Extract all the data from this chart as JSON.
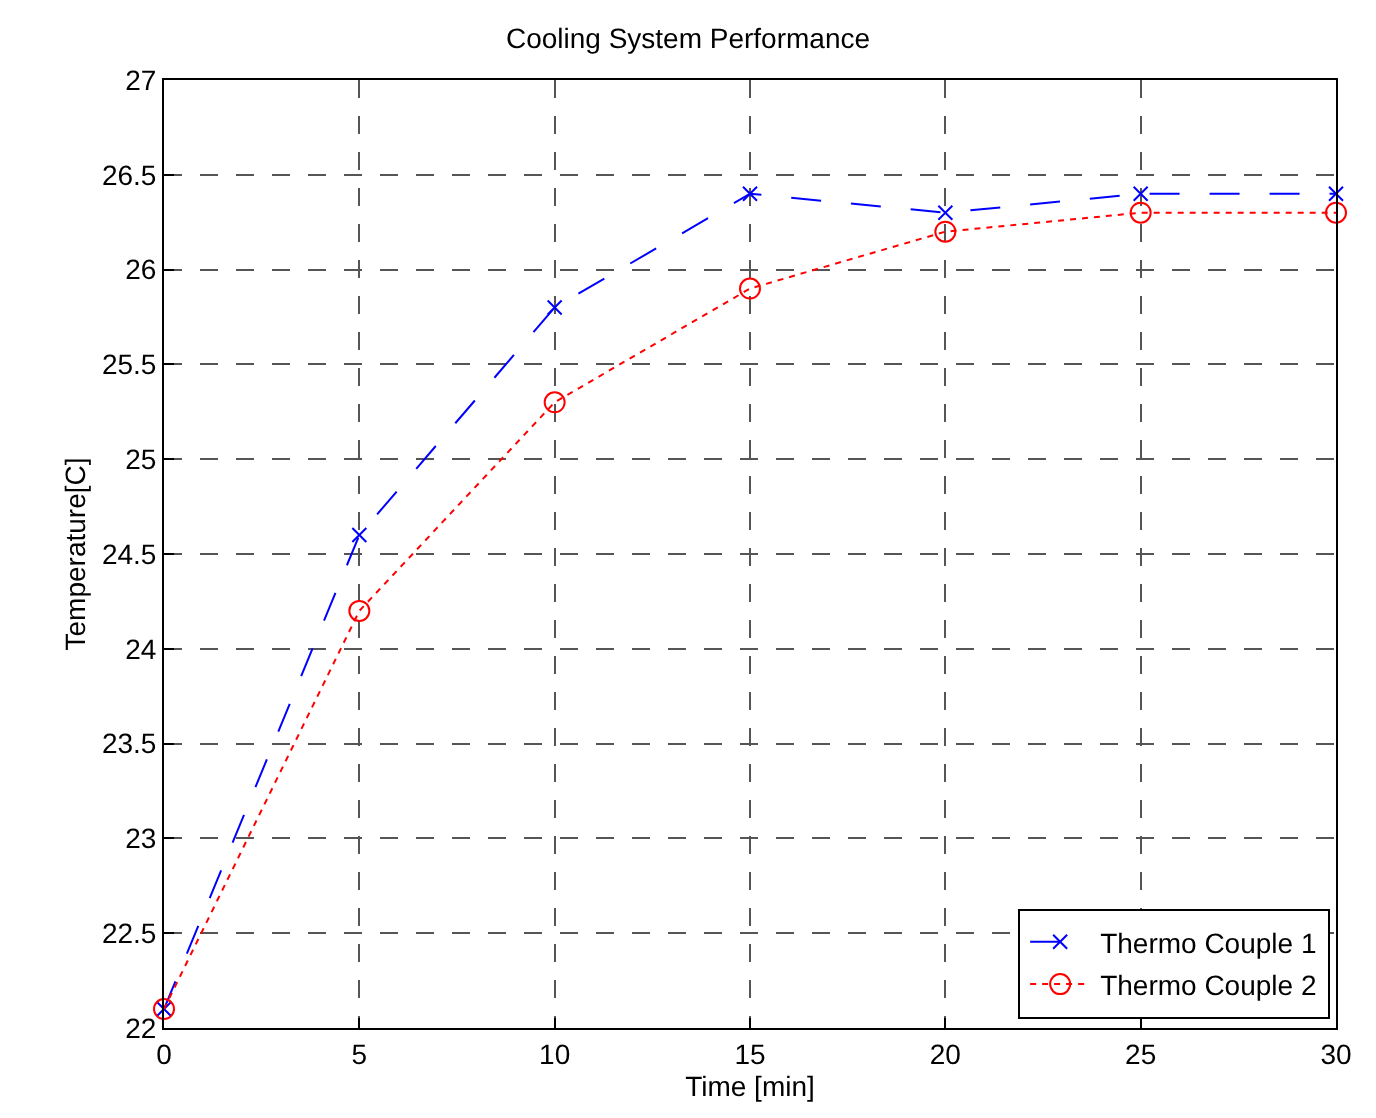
{
  "chart_data": {
    "type": "line",
    "title": "Cooling System Performance",
    "xlabel": "Time [min]",
    "ylabel": "Temperature[C]",
    "x": [
      0,
      5,
      10,
      15,
      20,
      25,
      30
    ],
    "series": [
      {
        "name": "Thermo Couple 1",
        "color": "#0000ff",
        "values": [
          22.1,
          24.6,
          25.8,
          26.4,
          26.3,
          26.4,
          26.4
        ],
        "marker": "cross",
        "line_style": "dashed"
      },
      {
        "name": "Thermo Couple 2",
        "color": "#ff0000",
        "values": [
          22.1,
          24.2,
          25.3,
          25.9,
          26.2,
          26.3,
          26.3
        ],
        "marker": "circle",
        "line_style": "dotted"
      }
    ],
    "xlim": [
      0,
      30
    ],
    "xticks": [
      0,
      5,
      10,
      15,
      20,
      25,
      30
    ],
    "ylim": [
      22,
      27
    ],
    "yticks": [
      22,
      22.5,
      23,
      23.5,
      24,
      24.5,
      25,
      25.5,
      26,
      26.5,
      27
    ],
    "grid": true,
    "legend": "bottom right"
  }
}
